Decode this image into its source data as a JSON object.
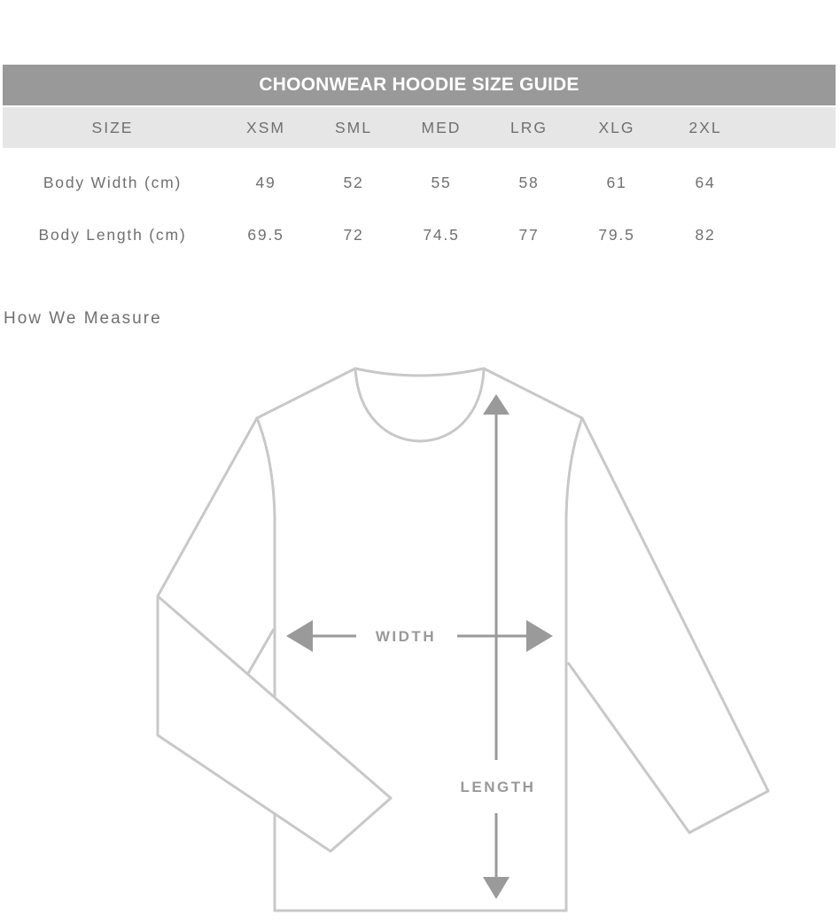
{
  "table": {
    "title": "CHOONWEAR HOODIE SIZE GUIDE",
    "header": [
      "SIZE",
      "XSM",
      "SML",
      "MED",
      "LRG",
      "XLG",
      "2XL"
    ],
    "rows": [
      {
        "label": "Body Width (cm)",
        "values": [
          "49",
          "52",
          "55",
          "58",
          "61",
          "64"
        ]
      },
      {
        "label": "Body Length (cm)",
        "values": [
          "69.5",
          "72",
          "74.5",
          "77",
          "79.5",
          "82"
        ]
      }
    ]
  },
  "measure": {
    "heading": "How We Measure",
    "width_label": "WIDTH",
    "length_label": "LENGTH"
  },
  "colors": {
    "title_bar": "#999999",
    "header_row": "#e6e6e6",
    "outline": "#c8c8c8",
    "arrow": "#9a9a9a"
  }
}
